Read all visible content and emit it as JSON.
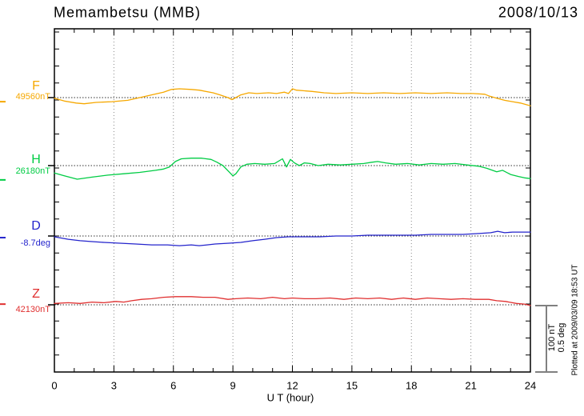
{
  "header": {
    "station": "Memambetsu (MMB)",
    "date": "2008/10/13"
  },
  "xaxis": {
    "label": "U T (hour)",
    "tick_labels": [
      "0",
      "3",
      "6",
      "9",
      "12",
      "15",
      "18",
      "21",
      "24"
    ]
  },
  "scale_bar": {
    "nt": "100 nT",
    "deg": "0.5 deg"
  },
  "footer": {
    "note": "Plotted at 2009/03/09 18:53 UT"
  },
  "chart_data": {
    "type": "line",
    "title": "Memambetsu (MMB)",
    "date": "2008/10/13",
    "xlabel": "U T (hour)",
    "x_unit": "hour",
    "x_range": [
      0,
      24
    ],
    "x_gridline_step_hours": 3,
    "grid": "dotted vertical gridlines every 3 hours; dotted horizontal baseline per component",
    "legend_position": "left margin, one label per trace",
    "scale_reference": {
      "nT_per_bar": 100,
      "deg_per_bar": 0.5
    },
    "series": [
      {
        "name": "F",
        "label": "F",
        "value_label": "49560nT",
        "base_value": 49560,
        "unit": "nT",
        "color": "#F6A800",
        "edge_mark_offset": -6,
        "points": [
          [
            0,
            -1
          ],
          [
            0.5,
            -5
          ],
          [
            1.1,
            -8
          ],
          [
            1.5,
            -9
          ],
          [
            2.1,
            -7
          ],
          [
            2.9,
            -6
          ],
          [
            3.7,
            -4
          ],
          [
            4.3,
            0
          ],
          [
            4.9,
            4
          ],
          [
            5.5,
            8
          ],
          [
            5.9,
            12
          ],
          [
            6.3,
            13
          ],
          [
            6.9,
            12
          ],
          [
            7.3,
            11
          ],
          [
            8.0,
            7
          ],
          [
            8.35,
            4
          ],
          [
            8.75,
            0
          ],
          [
            8.95,
            -3
          ],
          [
            9.15,
            0
          ],
          [
            9.4,
            4
          ],
          [
            9.8,
            7
          ],
          [
            10.2,
            6
          ],
          [
            10.8,
            7
          ],
          [
            11.2,
            6
          ],
          [
            11.6,
            8
          ],
          [
            11.8,
            6
          ],
          [
            12.0,
            13
          ],
          [
            12.2,
            11
          ],
          [
            12.6,
            10
          ],
          [
            13.0,
            9
          ],
          [
            13.6,
            7
          ],
          [
            14.2,
            6
          ],
          [
            15.0,
            7
          ],
          [
            15.8,
            6
          ],
          [
            16.6,
            7
          ],
          [
            17.4,
            6
          ],
          [
            18.2,
            7
          ],
          [
            19.0,
            6
          ],
          [
            19.8,
            7
          ],
          [
            20.5,
            6
          ],
          [
            21.1,
            6
          ],
          [
            21.7,
            5
          ],
          [
            21.95,
            2
          ],
          [
            22.3,
            -1
          ],
          [
            22.7,
            -4
          ],
          [
            23.1,
            -6
          ],
          [
            23.5,
            -8
          ],
          [
            24.0,
            -12
          ]
        ]
      },
      {
        "name": "H",
        "label": "H",
        "value_label": "26180nT",
        "base_value": 26180,
        "unit": "nT",
        "color": "#00CC44",
        "edge_mark_offset": -21,
        "points": [
          [
            0,
            -11
          ],
          [
            0.5,
            -15
          ],
          [
            1.15,
            -20
          ],
          [
            1.9,
            -17
          ],
          [
            2.7,
            -14
          ],
          [
            3.5,
            -12
          ],
          [
            4.3,
            -10
          ],
          [
            5.1,
            -7
          ],
          [
            5.5,
            -5
          ],
          [
            5.8,
            -2
          ],
          [
            6.1,
            6
          ],
          [
            6.4,
            10
          ],
          [
            6.9,
            11
          ],
          [
            7.4,
            11
          ],
          [
            7.9,
            9
          ],
          [
            8.2,
            5
          ],
          [
            8.5,
            0
          ],
          [
            8.8,
            -9
          ],
          [
            9.0,
            -15
          ],
          [
            9.15,
            -12
          ],
          [
            9.4,
            -2
          ],
          [
            9.7,
            2
          ],
          [
            10.1,
            3
          ],
          [
            10.6,
            2
          ],
          [
            11.1,
            3
          ],
          [
            11.5,
            10
          ],
          [
            11.7,
            -2
          ],
          [
            11.9,
            9
          ],
          [
            12.1,
            4
          ],
          [
            12.35,
            0
          ],
          [
            12.6,
            4
          ],
          [
            12.9,
            3
          ],
          [
            13.3,
            0
          ],
          [
            13.8,
            2
          ],
          [
            14.4,
            1
          ],
          [
            15.0,
            2
          ],
          [
            15.6,
            3
          ],
          [
            16.0,
            5
          ],
          [
            16.3,
            6
          ],
          [
            16.7,
            4
          ],
          [
            17.2,
            2
          ],
          [
            17.8,
            3
          ],
          [
            18.4,
            1
          ],
          [
            19.0,
            3
          ],
          [
            19.6,
            2
          ],
          [
            20.2,
            3
          ],
          [
            20.8,
            1
          ],
          [
            21.4,
            -1
          ],
          [
            21.8,
            -4
          ],
          [
            22.3,
            -9
          ],
          [
            22.6,
            -7
          ],
          [
            23.0,
            -13
          ],
          [
            23.4,
            -16
          ],
          [
            23.7,
            -18
          ],
          [
            24.0,
            -19
          ]
        ]
      },
      {
        "name": "D",
        "label": "D",
        "value_label": "-8.7deg",
        "base_value": -8.7,
        "unit": "deg",
        "color": "#2424CC",
        "edge_mark_offset": -0.012,
        "points": [
          [
            0,
            -0.006
          ],
          [
            0.7,
            -0.024
          ],
          [
            1.3,
            -0.035
          ],
          [
            1.9,
            -0.041
          ],
          [
            2.5,
            -0.047
          ],
          [
            3.3,
            -0.053
          ],
          [
            4.1,
            -0.059
          ],
          [
            4.9,
            -0.065
          ],
          [
            5.7,
            -0.065
          ],
          [
            6.3,
            -0.071
          ],
          [
            6.9,
            -0.065
          ],
          [
            7.3,
            -0.071
          ],
          [
            7.7,
            -0.065
          ],
          [
            8.1,
            -0.059
          ],
          [
            8.8,
            -0.053
          ],
          [
            9.4,
            -0.047
          ],
          [
            10.0,
            -0.035
          ],
          [
            10.6,
            -0.024
          ],
          [
            11.2,
            -0.012
          ],
          [
            11.8,
            -0.006
          ],
          [
            12.6,
            -0.006
          ],
          [
            13.4,
            -0.006
          ],
          [
            14.2,
            0
          ],
          [
            15.0,
            0
          ],
          [
            15.8,
            0.006
          ],
          [
            16.6,
            0.006
          ],
          [
            17.4,
            0.006
          ],
          [
            18.2,
            0.006
          ],
          [
            19.0,
            0.012
          ],
          [
            19.8,
            0.012
          ],
          [
            20.6,
            0.012
          ],
          [
            21.4,
            0.018
          ],
          [
            22.0,
            0.024
          ],
          [
            22.35,
            0.035
          ],
          [
            22.7,
            0.024
          ],
          [
            23.1,
            0.029
          ],
          [
            23.5,
            0.029
          ],
          [
            24.0,
            0.029
          ]
        ]
      },
      {
        "name": "Z",
        "label": "Z",
        "value_label": "42130nT",
        "base_value": 42130,
        "unit": "nT",
        "color": "#E03030",
        "edge_mark_offset": 1,
        "points": [
          [
            0,
            2
          ],
          [
            0.7,
            3
          ],
          [
            1.3,
            2
          ],
          [
            1.9,
            4
          ],
          [
            2.5,
            3
          ],
          [
            3.1,
            5
          ],
          [
            3.5,
            4
          ],
          [
            3.9,
            6
          ],
          [
            4.4,
            8
          ],
          [
            4.9,
            9
          ],
          [
            5.5,
            11
          ],
          [
            6.1,
            12
          ],
          [
            6.9,
            12
          ],
          [
            7.5,
            11
          ],
          [
            8.1,
            11
          ],
          [
            8.75,
            8
          ],
          [
            9.15,
            9
          ],
          [
            9.75,
            10
          ],
          [
            10.4,
            9
          ],
          [
            11.0,
            11
          ],
          [
            11.6,
            9
          ],
          [
            12.0,
            10
          ],
          [
            12.6,
            9
          ],
          [
            13.2,
            9
          ],
          [
            13.9,
            10
          ],
          [
            14.6,
            8
          ],
          [
            15.2,
            10
          ],
          [
            15.8,
            9
          ],
          [
            16.4,
            10
          ],
          [
            17.0,
            8
          ],
          [
            17.6,
            10
          ],
          [
            18.2,
            8
          ],
          [
            18.8,
            10
          ],
          [
            19.4,
            9
          ],
          [
            20.0,
            8
          ],
          [
            20.6,
            9
          ],
          [
            21.2,
            8
          ],
          [
            21.9,
            8
          ],
          [
            22.3,
            6
          ],
          [
            22.75,
            5
          ],
          [
            23.3,
            2
          ],
          [
            23.7,
            1
          ],
          [
            24.0,
            -1
          ]
        ]
      }
    ]
  }
}
